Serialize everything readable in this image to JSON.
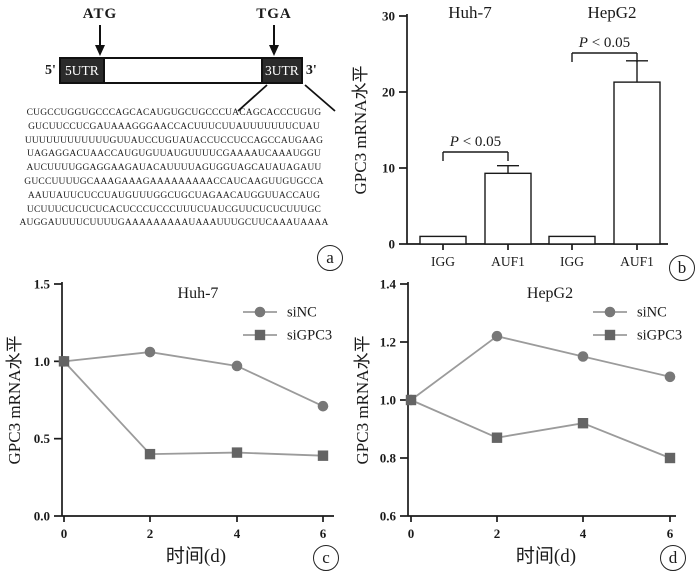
{
  "figure": {
    "background": "#ffffff",
    "panel_a": {
      "label": "a",
      "diagram": {
        "start_codon": "ATG",
        "stop_codon": "TGA",
        "five_prime": "5'",
        "three_prime": "3'",
        "five_utr": "5UTR",
        "three_utr": "3UTR",
        "box_color": "#2b2b2b"
      },
      "sequence_lines": [
        "CUGCCUGGUGCCCAGCACAUGUGCUGCCCUACAGCACCCUGUG",
        "GUCUUCCUCGAUAAAGGGAACCACUUUCUUAUUUUUUUCUAU",
        "UUUUUUUUUUUUGUUAUCCUGUAUACCUCCUCCAGCCAUGAAG",
        "UAGAGGACUAACCAUGUGUUAUGUUUUCGAAAAUCAAAUGGU",
        "AUCUUUUGGAGGAAGAUACAUUUUAGUGGUAGCAUAUAGAUU",
        "GUCCUUUUGCAAAGAAAGAAAAAAAAACCAUCAAGUUGUGCCA",
        "AAUUAUUCUCCUAUGUUUGGCUGCUAGAACAUGGUUACCAUG",
        "UCUUUCUCUCUCACUCCCUCCCUUUCUAUCGUUCUCUCUUUGC",
        "AUGGAUUUUCUUUUGAAAAAAAAAUAAAUUUGCUUCAAAUAAAA"
      ]
    },
    "panel_b": {
      "label": "b"
    },
    "panel_c": {
      "label": "c"
    },
    "panel_d": {
      "label": "d"
    }
  },
  "colors": {
    "axis": "#1a1a1a",
    "series_line": "#9b9b9b",
    "circle_marker": "#787878",
    "square_marker": "#646464",
    "utr_box": "#2b2b2b"
  },
  "chart_data": [
    {
      "id": "b",
      "type": "bar",
      "group_titles": [
        "Huh-7",
        "HepG2"
      ],
      "categories": [
        "IGG",
        "AUF1",
        "IGG",
        "AUF1"
      ],
      "values": [
        1.0,
        9.3,
        1.0,
        21.3
      ],
      "errors": [
        0,
        1.0,
        0,
        2.8
      ],
      "ylabel": "GPC3 mRNA水平",
      "ylim": [
        0,
        30
      ],
      "yticks": [
        "0",
        "10",
        "20",
        "30"
      ],
      "bar_fill": "#ffffff",
      "bar_stroke": "#1a1a1a",
      "significance": [
        {
          "from": 0,
          "to": 1,
          "label": "P < 0.05"
        },
        {
          "from": 2,
          "to": 3,
          "label": "P < 0.05"
        }
      ]
    },
    {
      "id": "c",
      "type": "line",
      "title": "Huh-7",
      "xlabel": "时间(d)",
      "ylabel": "GPC3 mRNA水平",
      "x": [
        0,
        2,
        4,
        6
      ],
      "xticks": [
        "0",
        "2",
        "4",
        "6"
      ],
      "ylim": [
        0,
        1.5
      ],
      "yticks": [
        "0.0",
        "0.5",
        "1.0",
        "1.5"
      ],
      "legend_position": "upper right",
      "series": [
        {
          "name": "siNC",
          "marker": "circle",
          "values": [
            1.0,
            1.06,
            0.97,
            0.71
          ]
        },
        {
          "name": "siGPC3",
          "marker": "square",
          "values": [
            1.0,
            0.4,
            0.41,
            0.39
          ]
        }
      ]
    },
    {
      "id": "d",
      "type": "line",
      "title": "HepG2",
      "xlabel": "时间(d)",
      "ylabel": "GPC3 mRNA水平",
      "x": [
        0,
        2,
        4,
        6
      ],
      "xticks": [
        "0",
        "2",
        "4",
        "6"
      ],
      "ylim": [
        0.6,
        1.4
      ],
      "yticks": [
        "0.6",
        "0.8",
        "1.0",
        "1.2",
        "1.4"
      ],
      "legend_position": "upper right",
      "series": [
        {
          "name": "siNC",
          "marker": "circle",
          "values": [
            1.0,
            1.22,
            1.15,
            1.08
          ]
        },
        {
          "name": "siGPC3",
          "marker": "square",
          "values": [
            1.0,
            0.87,
            0.92,
            0.8
          ]
        }
      ]
    }
  ]
}
